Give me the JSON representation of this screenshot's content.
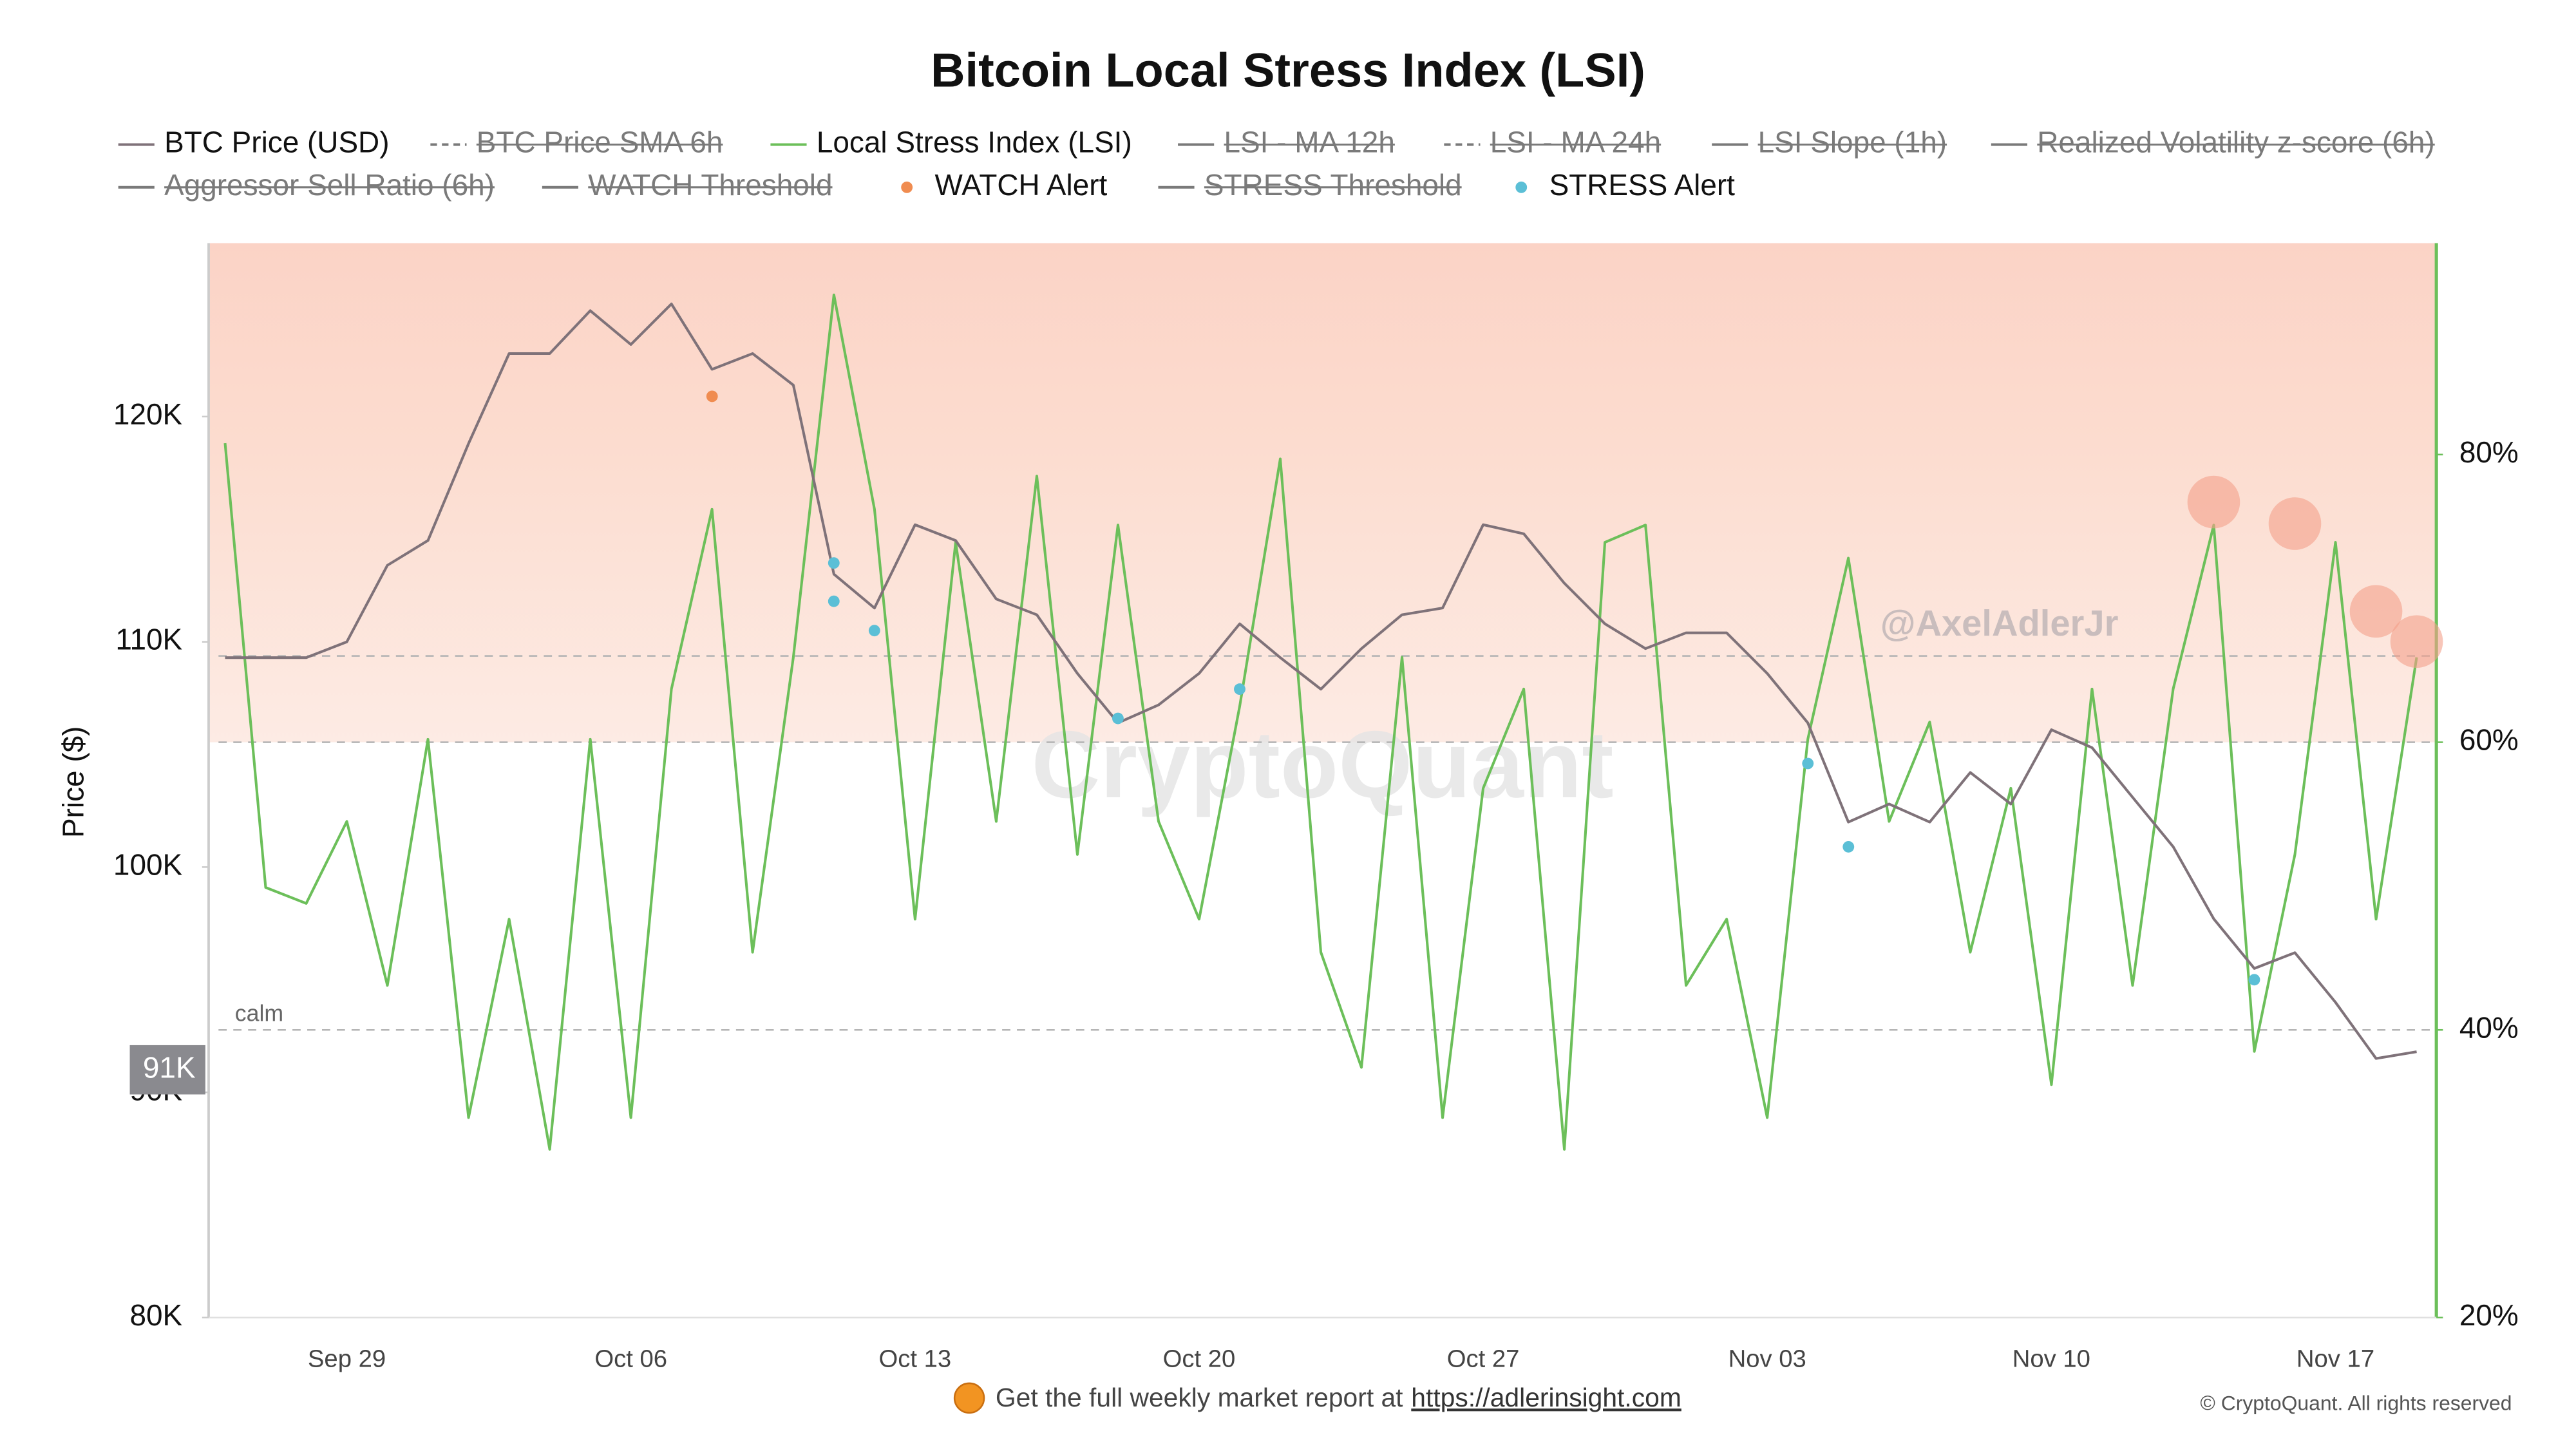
{
  "chart_data": {
    "type": "line",
    "title": "Bitcoin Local Stress Index (LSI)",
    "y_label": "Price ($)",
    "x": [
      "Sep 26",
      "Sep 27",
      "Sep 28",
      "Sep 29",
      "Sep 30",
      "Oct 01",
      "Oct 02",
      "Oct 03",
      "Oct 04",
      "Oct 05",
      "Oct 06",
      "Oct 07",
      "Oct 08",
      "Oct 09",
      "Oct 10",
      "Oct 11",
      "Oct 12",
      "Oct 13",
      "Oct 14",
      "Oct 15",
      "Oct 16",
      "Oct 17",
      "Oct 18",
      "Oct 19",
      "Oct 20",
      "Oct 21",
      "Oct 22",
      "Oct 23",
      "Oct 24",
      "Oct 25",
      "Oct 26",
      "Oct 27",
      "Oct 28",
      "Oct 29",
      "Oct 30",
      "Oct 31",
      "Nov 01",
      "Nov 02",
      "Nov 03",
      "Nov 04",
      "Nov 05",
      "Nov 06",
      "Nov 07",
      "Nov 08",
      "Nov 09",
      "Nov 10",
      "Nov 11",
      "Nov 12",
      "Nov 13",
      "Nov 14",
      "Nov 15",
      "Nov 16",
      "Nov 17",
      "Nov 18",
      "Nov 19"
    ],
    "xticks": [
      "Sep 29",
      "Oct 06",
      "Oct 13",
      "Oct 20",
      "Oct 27",
      "Nov 03",
      "Nov 10",
      "Nov 17"
    ],
    "ylim": [
      80000,
      127700
    ],
    "yticks": [
      {
        "value": 80000,
        "label": "80K"
      },
      {
        "value": 90000,
        "label": "90K"
      },
      {
        "value": 100000,
        "label": "100K"
      },
      {
        "value": 110000,
        "label": "110K"
      },
      {
        "value": 120000,
        "label": "120K"
      }
    ],
    "y2lim": [
      20,
      94.7
    ],
    "y2ticks": [
      {
        "value": 20,
        "label": "20%"
      },
      {
        "value": 40,
        "label": "40%"
      },
      {
        "value": 60,
        "label": "60%"
      },
      {
        "value": 80,
        "label": "80%"
      }
    ],
    "series": [
      {
        "name": "BTC Price (USD)",
        "color": "#7f7279",
        "values": [
          109300,
          109300,
          109300,
          110000,
          113400,
          114500,
          118800,
          122800,
          122800,
          124700,
          123200,
          125000,
          122100,
          122800,
          121400,
          113000,
          111500,
          115200,
          114500,
          111900,
          111200,
          108600,
          106400,
          107200,
          108600,
          110800,
          109300,
          107900,
          109700,
          111200,
          111500,
          115200,
          114800,
          112600,
          110800,
          109700,
          110400,
          110400,
          108600,
          106400,
          102000,
          102800,
          102000,
          104200,
          102800,
          106100,
          105300,
          103100,
          100900,
          97700,
          95500,
          96200,
          94000,
          91500,
          91800
        ]
      },
      {
        "name": "BTC Price SMA 6h",
        "color": "#7a7a7a",
        "dash": true,
        "hidden": true
      },
      {
        "name": "Local Stress Index (LSI)",
        "color": "#6cbf5a",
        "axis": "y2",
        "values": [
          80.8,
          49.9,
          48.8,
          54.5,
          43.1,
          60.2,
          33.9,
          47.7,
          31.7,
          60.2,
          33.9,
          63.7,
          76.2,
          45.4,
          65.9,
          91.1,
          76.2,
          47.7,
          73.9,
          54.5,
          78.5,
          52.2,
          75.1,
          54.5,
          47.7,
          62.5,
          79.7,
          45.4,
          37.4,
          65.9,
          33.9,
          56.8,
          63.7,
          31.7,
          73.9,
          75.1,
          43.1,
          47.7,
          33.9,
          60.2,
          72.8,
          54.5,
          61.4,
          45.4,
          56.8,
          36.2,
          63.7,
          43.1,
          63.7,
          75.1,
          38.5,
          52.2,
          73.9,
          47.7,
          65.9
        ]
      },
      {
        "name": "LSI - MA 12h",
        "color": "#7a7a7a",
        "hidden": true
      },
      {
        "name": "LSI - MA 24h",
        "color": "#7a7a7a",
        "dash": true,
        "hidden": true
      },
      {
        "name": "LSI Slope (1h)",
        "color": "#7a7a7a",
        "hidden": true
      },
      {
        "name": "Realized Volatility z-score (6h)",
        "color": "#7a7a7a",
        "hidden": true
      },
      {
        "name": "Aggressor Sell Ratio (6h)",
        "color": "#7a7a7a",
        "hidden": true
      },
      {
        "name": "WATCH Threshold",
        "color": "#7a7a7a",
        "hidden": true
      },
      {
        "name": "WATCH Alert",
        "color": "#f08c50",
        "marker": "dot",
        "x": [
          "Oct 08"
        ],
        "values": [
          120900
        ]
      },
      {
        "name": "STRESS Threshold",
        "color": "#7a7a7a",
        "hidden": true
      },
      {
        "name": "STRESS Alert",
        "color": "#5bbfd6",
        "marker": "dot",
        "x": [
          "Oct 11",
          "Oct 11",
          "Oct 12",
          "Oct 18",
          "Oct 21",
          "Nov 04",
          "Nov 05",
          "Nov 15"
        ],
        "values": [
          113500,
          111800,
          110500,
          106600,
          107900,
          104600,
          100900,
          95000
        ]
      }
    ],
    "highlights": {
      "color": "#f4a08a",
      "x": [
        "Nov 14",
        "Nov 16",
        "Nov 18",
        "Nov 19"
      ],
      "values": [
        76.7,
        75.2,
        69.1,
        67.0
      ]
    },
    "shade_from": 60,
    "reference_lines": [
      {
        "value": 66,
        "axis": "y2"
      },
      {
        "value": 60,
        "axis": "y2"
      },
      {
        "value": 40,
        "axis": "y2",
        "label": "calm"
      }
    ],
    "last_price": {
      "value": 91000,
      "label": "91K"
    },
    "watermark": "CryptoQuant",
    "credit": "@AxelAdlerJr",
    "footer": {
      "text": "Get the full weekly market report at",
      "link": "https://adlerinsight.com",
      "copyright": "© CryptoQuant. All rights reserved"
    }
  }
}
